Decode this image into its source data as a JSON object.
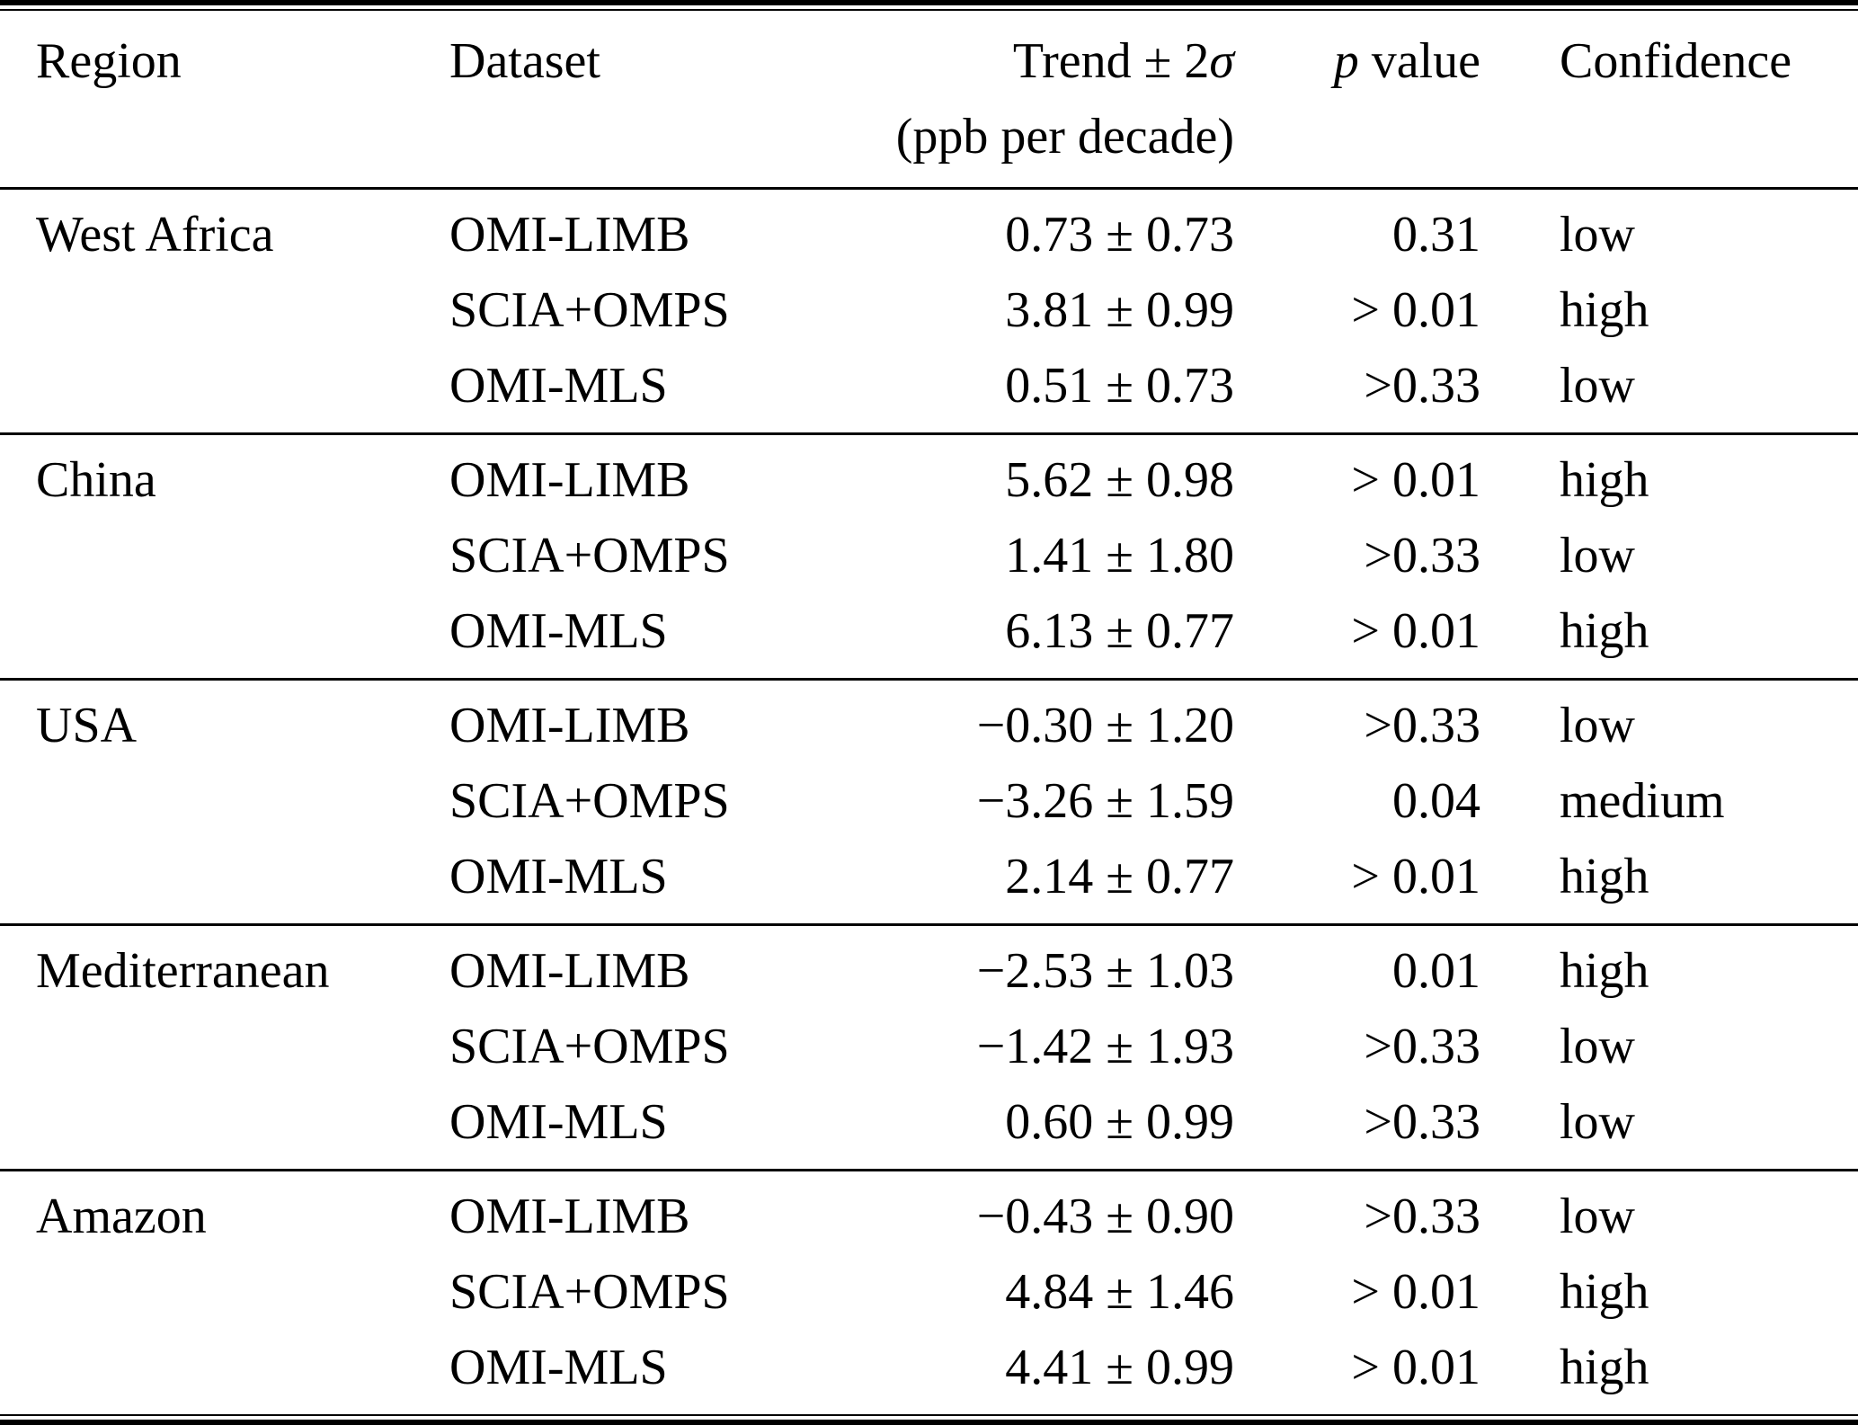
{
  "page": {
    "background_color": "#ffffff",
    "text_color": "#000000",
    "rule_color": "#000000"
  },
  "table": {
    "header": {
      "region": "Region",
      "dataset": "Dataset",
      "trend_prefix": "Trend ± 2",
      "trend_sigma": "σ",
      "trend_unit": "(ppb per decade)",
      "p_symbol": "p",
      "p_suffix": " value",
      "confidence": "Confidence"
    },
    "sections": [
      {
        "region": "West Africa",
        "rows": [
          {
            "dataset": "OMI-LIMB",
            "trend": "0.73 ± 0.73",
            "p": "0.31",
            "confidence": "low"
          },
          {
            "dataset": "SCIA+OMPS",
            "trend": "3.81 ± 0.99",
            "p": "> 0.01",
            "confidence": "high"
          },
          {
            "dataset": "OMI-MLS",
            "trend": "0.51 ± 0.73",
            "p": ">0.33",
            "confidence": "low"
          }
        ]
      },
      {
        "region": "China",
        "rows": [
          {
            "dataset": "OMI-LIMB",
            "trend": "5.62 ± 0.98",
            "p": "> 0.01",
            "confidence": "high"
          },
          {
            "dataset": "SCIA+OMPS",
            "trend": "1.41 ± 1.80",
            "p": ">0.33",
            "confidence": "low"
          },
          {
            "dataset": "OMI-MLS",
            "trend": "6.13 ± 0.77",
            "p": "> 0.01",
            "confidence": "high"
          }
        ]
      },
      {
        "region": "USA",
        "rows": [
          {
            "dataset": "OMI-LIMB",
            "trend": "−0.30 ± 1.20",
            "p": ">0.33",
            "confidence": "low"
          },
          {
            "dataset": "SCIA+OMPS",
            "trend": "−3.26 ± 1.59",
            "p": "0.04",
            "confidence": "medium"
          },
          {
            "dataset": "OMI-MLS",
            "trend": "2.14 ± 0.77",
            "p": "> 0.01",
            "confidence": "high"
          }
        ]
      },
      {
        "region": "Mediterranean",
        "rows": [
          {
            "dataset": "OMI-LIMB",
            "trend": "−2.53 ± 1.03",
            "p": "0.01",
            "confidence": "high"
          },
          {
            "dataset": "SCIA+OMPS",
            "trend": "−1.42 ± 1.93",
            "p": ">0.33",
            "confidence": "low"
          },
          {
            "dataset": "OMI-MLS",
            "trend": "0.60 ± 0.99",
            "p": ">0.33",
            "confidence": "low"
          }
        ]
      },
      {
        "region": "Amazon",
        "rows": [
          {
            "dataset": "OMI-LIMB",
            "trend": "−0.43 ± 0.90",
            "p": ">0.33",
            "confidence": "low"
          },
          {
            "dataset": "SCIA+OMPS",
            "trend": "4.84 ± 1.46",
            "p": "> 0.01",
            "confidence": "high"
          },
          {
            "dataset": "OMI-MLS",
            "trend": "4.41 ± 0.99",
            "p": "> 0.01",
            "confidence": "high"
          }
        ]
      }
    ]
  }
}
